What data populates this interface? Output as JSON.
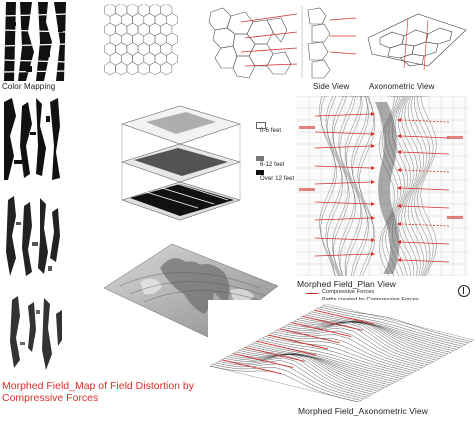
{
  "labels": {
    "color_mapping": "Color Mapping",
    "side_view": "Side View",
    "axonometric_view": "Axonometric View",
    "plan_view": "Morphed Field_Plan View",
    "axonometric_bottom": "Morphed Field_Axonometric View"
  },
  "layer_legend": {
    "item1": "0-6 feet",
    "item2": "6-12 feet",
    "item3": "Over 12 feet"
  },
  "plan_legend": {
    "item1": "Compressive Forces",
    "item2": "Paths created by Compressive Forces"
  },
  "title": {
    "line1_a": "Morphed Field_",
    "line1_b": "Map of Field Distortion by",
    "line2": "Compressive Forces"
  },
  "colors": {
    "accent_red": "#d6302a",
    "ink": "#1a1a1a",
    "line_grey": "#777777"
  }
}
